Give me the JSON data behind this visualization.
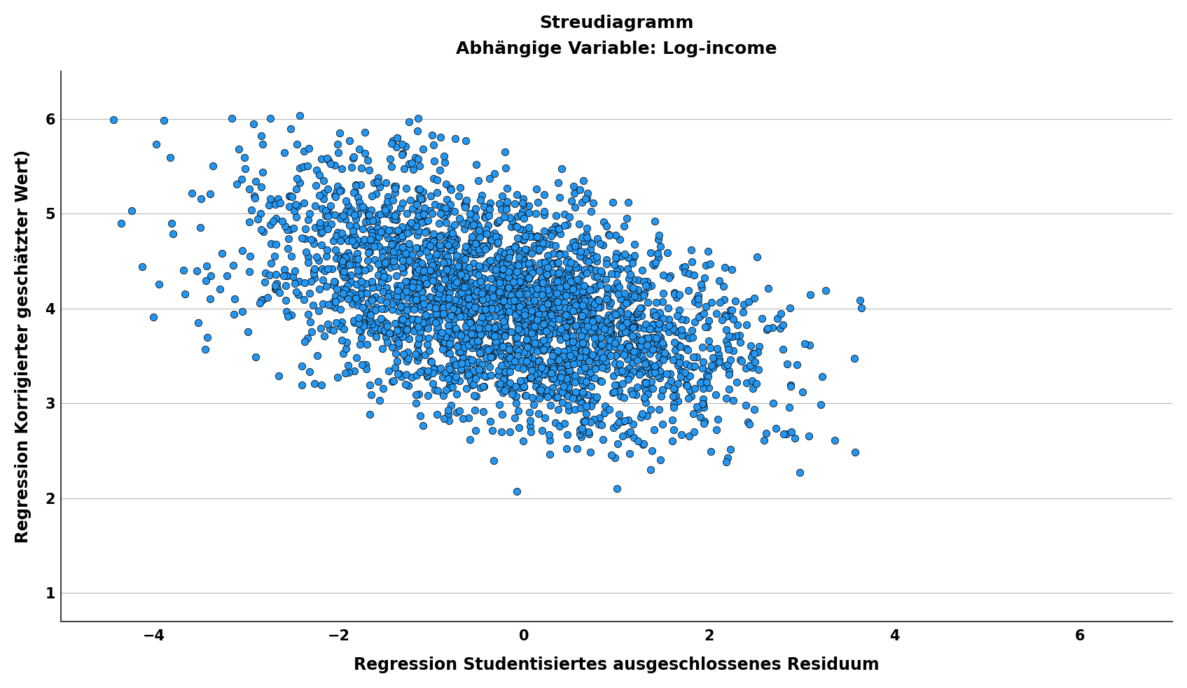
{
  "title1": "Streudiagramm",
  "title2": "Abhängige Variable: Log-income",
  "xlabel": "Regression Studentisiertes ausgeschlossenes Residuum",
  "ylabel": "Regression Korrigierter geschätzter Wert)",
  "xlim": [
    -5,
    7
  ],
  "ylim": [
    0.7,
    6.5
  ],
  "xticks": [
    -4,
    -2,
    0,
    2,
    4,
    6
  ],
  "yticks": [
    1,
    2,
    3,
    4,
    5,
    6
  ],
  "dot_color": "#2196F3",
  "dot_edge_color": "#111111",
  "dot_size": 55,
  "n_points": 3000,
  "background_color": "#ffffff",
  "grid_color": "#b8b8b8",
  "seed": 12345
}
